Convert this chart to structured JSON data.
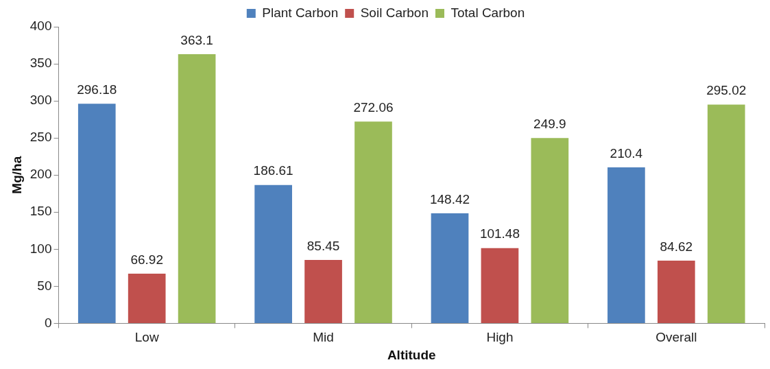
{
  "chart_data": {
    "type": "bar",
    "xlabel": "Altitude",
    "ylabel": "Mg/ha",
    "categories": [
      "Low",
      "Mid",
      "High",
      "Overall"
    ],
    "series": [
      {
        "name": "Plant Carbon",
        "color": "#4f81bd",
        "values": [
          296.18,
          186.61,
          148.42,
          210.4
        ]
      },
      {
        "name": "Soil Carbon",
        "color": "#c0504d",
        "values": [
          66.92,
          85.45,
          101.48,
          84.62
        ]
      },
      {
        "name": "Total Carbon",
        "color": "#9bbb59",
        "values": [
          363.1,
          272.06,
          249.9,
          295.02
        ]
      }
    ],
    "ylim": [
      0,
      400
    ],
    "yticks": [
      0,
      50,
      100,
      150,
      200,
      250,
      300,
      350,
      400
    ],
    "grid": false,
    "legend": "top",
    "data_labels": true
  }
}
